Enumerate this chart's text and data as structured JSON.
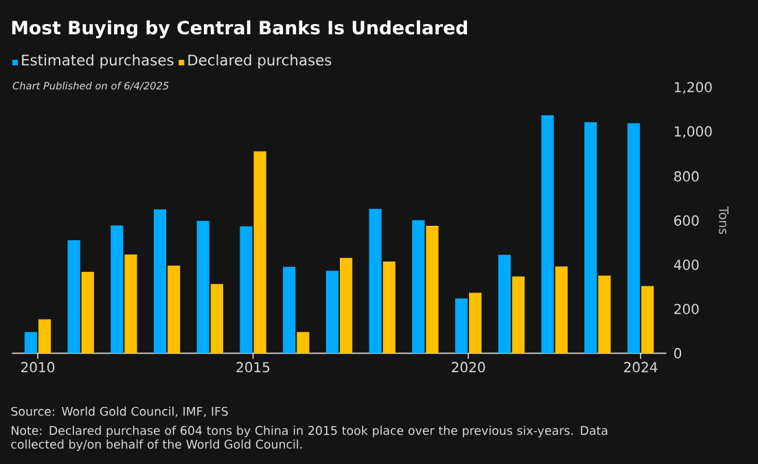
{
  "chart_data": {
    "type": "bar",
    "title": "Most Buying by Central Banks Is Undeclared",
    "subtitle": "Chart Published on of 6/4/2025",
    "ylabel": "Tons",
    "x": [
      2010,
      2011,
      2012,
      2013,
      2014,
      2015,
      2016,
      2017,
      2018,
      2019,
      2020,
      2021,
      2022,
      2023,
      2024
    ],
    "series": [
      {
        "name": "Estimated purchases",
        "color": "#00aaff",
        "values": [
          96,
          511,
          578,
          651,
          599,
          574,
          391,
          373,
          653,
          602,
          248,
          445,
          1076,
          1045,
          1040
        ]
      },
      {
        "name": "Declared purchases",
        "color": "#ffc000",
        "values": [
          153,
          368,
          447,
          396,
          313,
          913,
          96,
          431,
          415,
          576,
          274,
          347,
          392,
          351,
          304
        ]
      }
    ],
    "xlim": [
      2009.4,
      2024.6
    ],
    "xticks": [
      2010,
      2015,
      2020,
      2024
    ],
    "ylim": [
      0,
      1200
    ],
    "yticks": [
      0,
      200,
      400,
      600,
      800,
      {
        "value": 1000,
        "label": "1,000"
      },
      {
        "value": 1200,
        "label": "1,200"
      }
    ],
    "legend": "top left",
    "grid": false,
    "annotations": [
      "Source: World Gold Council, IMF, IFS",
      "Note: Declared purchase of 604 tons by China in 2015 took place over the previous six-years. Data collected by/on behalf of the World Gold Council."
    ]
  }
}
